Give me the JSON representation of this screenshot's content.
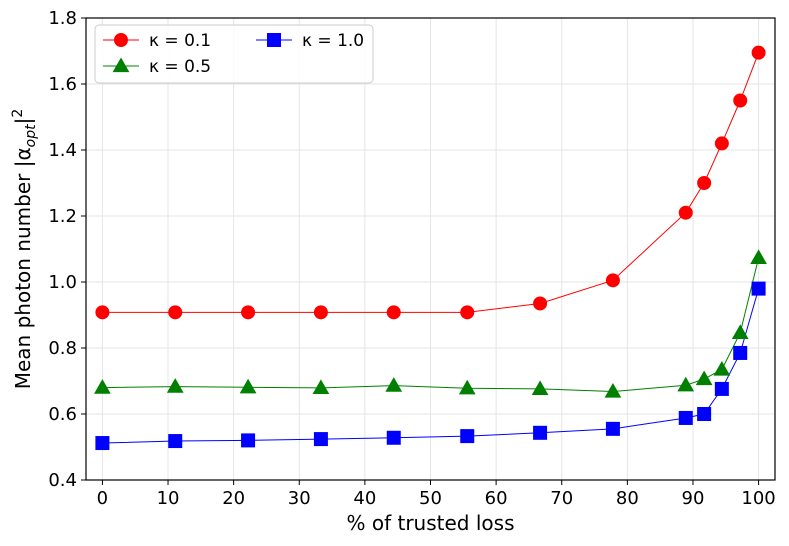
{
  "chart_data": {
    "type": "line",
    "xlabel": "% of trusted loss",
    "ylabel": "Mean photon number |α",
    "ylabel_sub": "opt",
    "ylabel_tail": "|",
    "ylabel_sup": "2",
    "xlim": [
      -2.5,
      102.5
    ],
    "ylim": [
      0.4,
      1.8
    ],
    "xticks": [
      0,
      10,
      20,
      30,
      40,
      50,
      60,
      70,
      80,
      90,
      100
    ],
    "yticks": [
      0.4,
      0.6,
      0.8,
      1.0,
      1.2,
      1.4,
      1.6,
      1.8
    ],
    "ytick_labels": [
      "0.4",
      "0.6",
      "0.8",
      "1.0",
      "1.2",
      "1.4",
      "1.6",
      "1.8"
    ],
    "grid": true,
    "legend_position": "top-left",
    "series": [
      {
        "name": "κ = 0.1",
        "color": "#ff0000",
        "marker": "circle",
        "x": [
          0,
          11.1,
          22.2,
          33.3,
          44.4,
          55.6,
          66.7,
          77.8,
          88.9,
          91.7,
          94.4,
          97.2,
          100
        ],
        "y": [
          0.908,
          0.908,
          0.908,
          0.908,
          0.908,
          0.908,
          0.935,
          1.005,
          1.21,
          1.3,
          1.42,
          1.55,
          1.695
        ]
      },
      {
        "name": "κ = 0.5",
        "color": "#008000",
        "marker": "triangle",
        "x": [
          0,
          11.1,
          22.2,
          33.3,
          44.4,
          55.6,
          66.7,
          77.8,
          88.9,
          91.7,
          94.4,
          97.2,
          100
        ],
        "y": [
          0.68,
          0.683,
          0.681,
          0.679,
          0.686,
          0.678,
          0.676,
          0.668,
          0.687,
          0.706,
          0.735,
          0.846,
          1.073
        ]
      },
      {
        "name": "κ = 1.0",
        "color": "#0000ff",
        "marker": "square",
        "x": [
          0,
          11.1,
          22.2,
          33.3,
          44.4,
          55.6,
          66.7,
          77.8,
          88.9,
          91.7,
          94.4,
          97.2,
          100
        ],
        "y": [
          0.512,
          0.518,
          0.52,
          0.524,
          0.528,
          0.533,
          0.543,
          0.555,
          0.588,
          0.6,
          0.676,
          0.785,
          0.98
        ]
      }
    ]
  }
}
